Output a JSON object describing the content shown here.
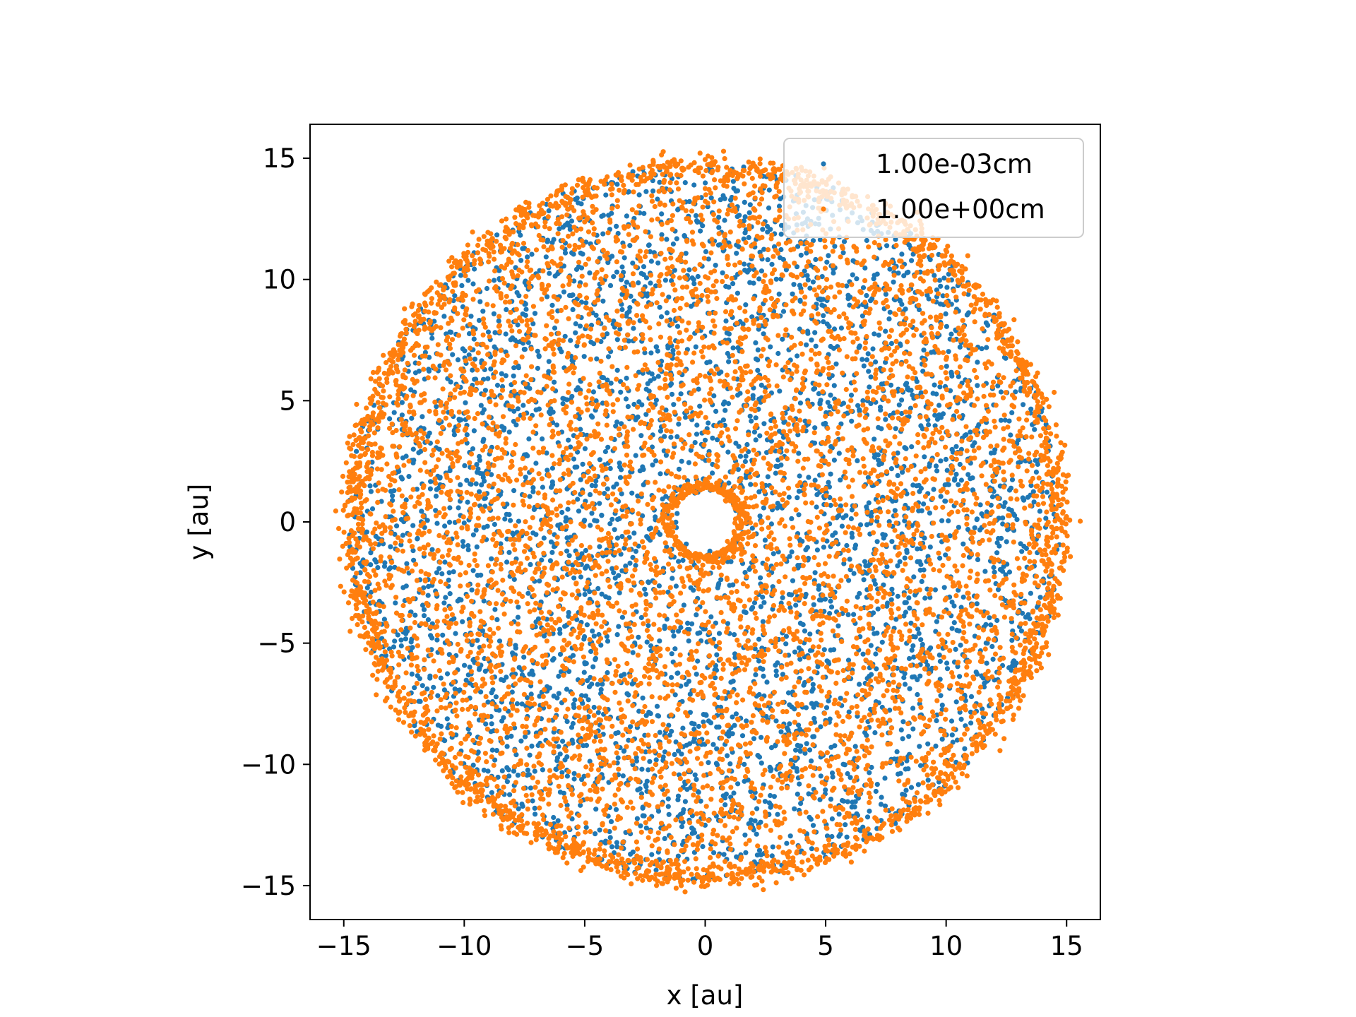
{
  "chart_data": {
    "type": "scatter",
    "title": "",
    "xlabel": "x [au]",
    "ylabel": "y [au]",
    "xlim": [
      -16.4,
      16.4
    ],
    "ylim": [
      -16.4,
      16.4
    ],
    "xticks": [
      -15,
      -10,
      -5,
      0,
      5,
      10,
      15
    ],
    "yticks": [
      -15,
      -10,
      -5,
      0,
      5,
      10,
      15
    ],
    "xtick_labels": [
      "−15",
      "−10",
      "−5",
      "0",
      "5",
      "10",
      "15"
    ],
    "ytick_labels": [
      "−15",
      "−10",
      "−5",
      "0",
      "5",
      "10",
      "15"
    ],
    "grid": false,
    "legend_position": "upper right",
    "series": [
      {
        "name": "1.00e-03cm",
        "color": "#1f77b4",
        "distribution": "uniform disk",
        "r_inner": 1.2,
        "r_outer": 14.8,
        "n_points": 4200
      },
      {
        "name": "1.00e+00cm",
        "color": "#ff7f0e",
        "distribution": "uniform disk with dense outer rim",
        "r_inner": 1.2,
        "r_outer": 15.0,
        "n_points": 5200,
        "rim_points": 1800
      }
    ]
  }
}
